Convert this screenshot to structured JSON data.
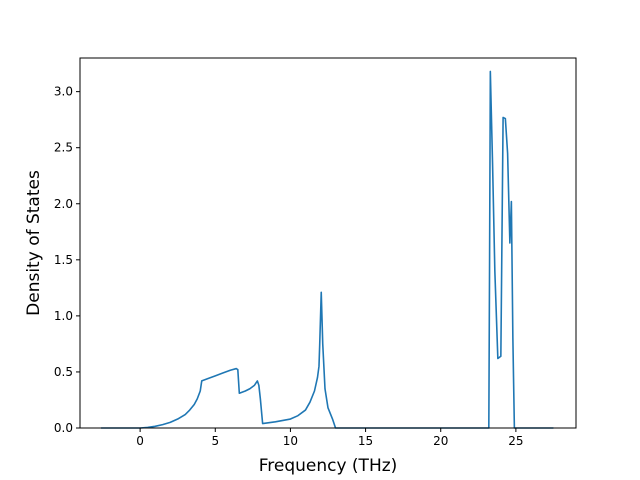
{
  "chart_data": {
    "type": "line",
    "title": "",
    "xlabel": "Frequency (THz)",
    "ylabel": "Density of States",
    "xlim": [
      -4.0,
      29.0
    ],
    "ylim": [
      0.0,
      3.3
    ],
    "xticks": [
      0,
      5,
      10,
      15,
      20,
      25
    ],
    "yticks": [
      0.0,
      0.5,
      1.0,
      1.5,
      2.0,
      2.5,
      3.0
    ],
    "xtick_labels": [
      "0",
      "5",
      "10",
      "15",
      "20",
      "25"
    ],
    "ytick_labels": [
      "0.0",
      "0.5",
      "1.0",
      "1.5",
      "2.0",
      "2.5",
      "3.0"
    ],
    "grid": false,
    "line_color": "#1f77b4",
    "series": [
      {
        "x": [
          -2.6,
          -1.0,
          0.0,
          0.5,
          1.0,
          1.5,
          2.0,
          2.5,
          3.0,
          3.3,
          3.6,
          3.8,
          4.0,
          4.1,
          4.5,
          5.0,
          5.5,
          6.0,
          6.4,
          6.5,
          6.6,
          7.0,
          7.3,
          7.6,
          7.8,
          7.9,
          8.0,
          8.15,
          9.0,
          10.0,
          10.5,
          11.0,
          11.3,
          11.6,
          11.8,
          11.9,
          11.95,
          12.05,
          12.15,
          12.3,
          12.5,
          12.8,
          13.0,
          13.2,
          15.0,
          20.0,
          23.2,
          23.25,
          23.3,
          23.45,
          23.6,
          23.8,
          24.0,
          24.15,
          24.3,
          24.45,
          24.6,
          24.7,
          24.8,
          24.85,
          24.9,
          25.0,
          25.05,
          25.5,
          27.5
        ],
        "y": [
          0.0,
          0.0,
          0.0,
          0.005,
          0.015,
          0.03,
          0.05,
          0.08,
          0.12,
          0.16,
          0.21,
          0.26,
          0.33,
          0.42,
          0.44,
          0.465,
          0.49,
          0.515,
          0.53,
          0.52,
          0.31,
          0.33,
          0.35,
          0.38,
          0.42,
          0.38,
          0.26,
          0.04,
          0.055,
          0.08,
          0.11,
          0.16,
          0.23,
          0.33,
          0.45,
          0.55,
          0.75,
          1.21,
          0.75,
          0.35,
          0.18,
          0.08,
          0.0,
          0.0,
          0.0,
          0.0,
          0.0,
          1.5,
          3.18,
          2.35,
          1.4,
          0.62,
          0.64,
          2.77,
          2.76,
          2.45,
          1.65,
          2.02,
          0.8,
          0.4,
          0.0,
          0.0,
          0.0,
          0.0,
          0.0
        ]
      }
    ]
  }
}
